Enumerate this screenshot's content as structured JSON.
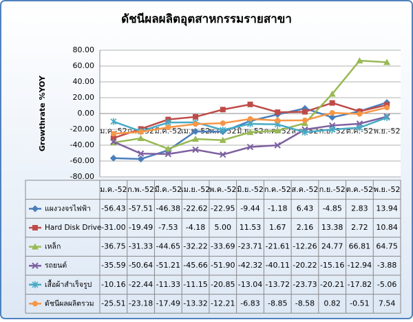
{
  "chart_data": {
    "type": "line",
    "title": "ดัชนีผลผลิตอุตสาหกรรมรายสาขา",
    "y_label": "Growthrate %YOY",
    "categories": [
      "ม.ค.-52",
      "ก.พ.-52",
      "มี.ค.-52",
      "เม.ย.-52",
      "พ.ค.-52",
      "มิ.ย.-52",
      "ก.ค.-52",
      "ส.ค.-52",
      "ก.ย.-52",
      "ต.ค.-52",
      "พ.ย.-52"
    ],
    "ylim": [
      -80,
      80
    ],
    "yticks": [
      {
        "value": 80,
        "label": "80.00"
      },
      {
        "value": 60,
        "label": "60.00"
      },
      {
        "value": 40,
        "label": "40.00"
      },
      {
        "value": 20,
        "label": "20.00"
      },
      {
        "value": 0,
        "label": "0.00"
      },
      {
        "value": -20,
        "label": "-20.00"
      },
      {
        "value": -40,
        "label": "-40.00"
      },
      {
        "value": -60,
        "label": "-60.00"
      },
      {
        "value": -80,
        "label": "-80.00"
      }
    ],
    "grid": true,
    "series": [
      {
        "name": "แผงวงจรไฟฟ้า",
        "color": "#4a7ebb",
        "marker": "diamond",
        "values": [
          -56.43,
          -57.51,
          -46.38,
          -22.62,
          -22.95,
          -9.44,
          -1.18,
          6.43,
          -4.85,
          2.83,
          13.94
        ],
        "value_labels": [
          "-56.43",
          "-57.51",
          "-46.38",
          "-22.62",
          "-22.95",
          "-9.44",
          "-1.18",
          "6.43",
          "-4.85",
          "2.83",
          "13.94"
        ]
      },
      {
        "name": "Hard Disk Drive",
        "color": "#be4b48",
        "marker": "square",
        "values": [
          -31.0,
          -19.49,
          -7.53,
          -4.18,
          5.0,
          11.53,
          1.67,
          2.16,
          13.38,
          2.72,
          10.84
        ],
        "value_labels": [
          "-31.00",
          "-19.49",
          "-7.53",
          "-4.18",
          "5.00",
          "11.53",
          "1.67",
          "2.16",
          "13.38",
          "2.72",
          "10.84"
        ]
      },
      {
        "name": "เหล็ก",
        "color": "#98b954",
        "marker": "triangle",
        "values": [
          -36.75,
          -31.33,
          -44.65,
          -32.22,
          -33.69,
          -23.71,
          -21.61,
          -12.26,
          24.77,
          66.81,
          64.75
        ],
        "value_labels": [
          "-36.75",
          "-31.33",
          "-44.65",
          "-32.22",
          "-33.69",
          "-23.71",
          "-21.61",
          "-12.26",
          "24.77",
          "66.81",
          "64.75"
        ]
      },
      {
        "name": "รถยนต์",
        "color": "#7d60a0",
        "marker": "x",
        "values": [
          -35.59,
          -50.64,
          -51.21,
          -45.66,
          -51.9,
          -42.32,
          -40.11,
          -20.22,
          -15.16,
          -12.94,
          -3.88
        ],
        "value_labels": [
          "-35.59",
          "-50.64",
          "-51.21",
          "-45.66",
          "-51.90",
          "-42.32",
          "-40.11",
          "-20.22",
          "-15.16",
          "-12.94",
          "-3.88"
        ]
      },
      {
        "name": "เสื้อผ้าสำเร็จรูป",
        "color": "#46aac5",
        "marker": "star",
        "values": [
          -10.16,
          -22.44,
          -11.33,
          -11.15,
          -20.85,
          -13.04,
          -13.72,
          -23.73,
          -20.21,
          -17.82,
          -5.06
        ],
        "value_labels": [
          "-10.16",
          "-22.44",
          "-11.33",
          "-11.15",
          "-20.85",
          "-13.04",
          "-13.72",
          "-23.73",
          "-20.21",
          "-17.82",
          "-5.06"
        ]
      },
      {
        "name": "ดัชนีผลผลิตรวม",
        "color": "#f79646",
        "marker": "circle",
        "values": [
          -25.51,
          -23.18,
          -17.49,
          -13.32,
          -12.21,
          -6.83,
          -8.85,
          -8.58,
          0.82,
          -0.51,
          7.54
        ],
        "value_labels": [
          "-25.51",
          "-23.18",
          "-17.49",
          "-13.32",
          "-12.21",
          "-6.83",
          "-8.85",
          "-8.58",
          "0.82",
          "-0.51",
          "7.54"
        ]
      }
    ]
  }
}
